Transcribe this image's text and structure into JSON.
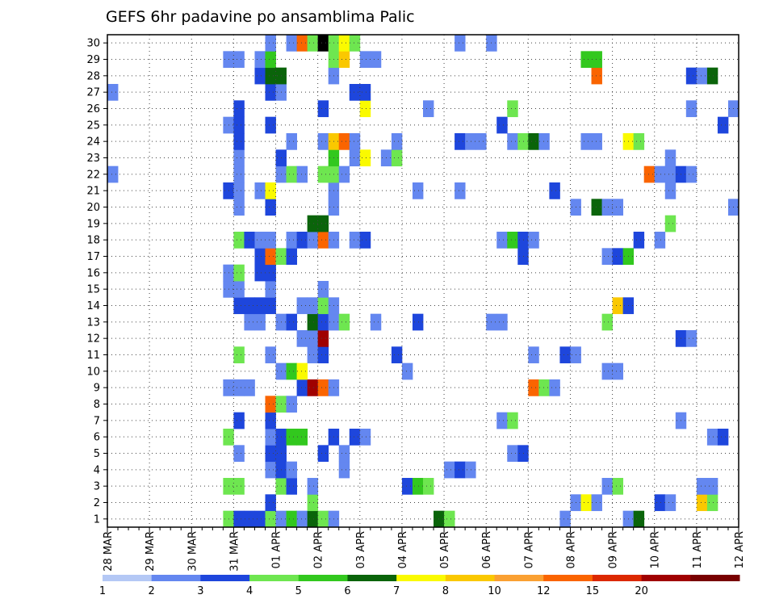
{
  "chart_data": {
    "type": "heatmap",
    "title": "GEFS 6hr padavine po ansamblima Palic",
    "xlabel": "",
    "ylabel": "",
    "x_unit": "6-hour step",
    "x_start": "28 MAR 00Z",
    "x_ticks": [
      "28 MAR",
      "29 MAR",
      "30 MAR",
      "31 MAR",
      "01 APR",
      "02 APR",
      "03 APR",
      "04 APR",
      "05 APR",
      "06 APR",
      "07 APR",
      "08 APR",
      "09 APR",
      "10 APR",
      "11 APR",
      "12 APR"
    ],
    "y_ticks": [
      "1",
      "2",
      "3",
      "4",
      "5",
      "6",
      "7",
      "8",
      "9",
      "10",
      "11",
      "12",
      "13",
      "14",
      "15",
      "16",
      "17",
      "18",
      "19",
      "20",
      "21",
      "22",
      "23",
      "24",
      "25",
      "26",
      "27",
      "28",
      "29",
      "30"
    ],
    "xlim": [
      0,
      60
    ],
    "ylim": [
      0.5,
      30.5
    ],
    "grid": true,
    "legend": "bottom colorbar",
    "colorbar": {
      "labels": [
        "1",
        "2",
        "3",
        "4",
        "5",
        "6",
        "7",
        "8",
        "10",
        "12",
        "15",
        "20"
      ],
      "colors": [
        "#b4c8f5",
        "#6487f0",
        "#1e46dc",
        "#6ee650",
        "#32c81e",
        "#0a640a",
        "#fafa00",
        "#fac800",
        "#faa032",
        "#fa6400",
        "#dc2800",
        "#a00000",
        "#780000"
      ]
    },
    "cells": [
      [
        12,
        1,
        3
      ],
      [
        13,
        1,
        2
      ],
      [
        14,
        1,
        2
      ],
      [
        15,
        1,
        2
      ],
      [
        16,
        1,
        3
      ],
      [
        17,
        1,
        1
      ],
      [
        18,
        1,
        4
      ],
      [
        19,
        1,
        1
      ],
      [
        20,
        1,
        5
      ],
      [
        21,
        1,
        3
      ],
      [
        22,
        1,
        1
      ],
      [
        32,
        1,
        5
      ],
      [
        33,
        1,
        3
      ],
      [
        44,
        1,
        1
      ],
      [
        50,
        1,
        1
      ],
      [
        51,
        1,
        5
      ],
      [
        16,
        2,
        2
      ],
      [
        20,
        2,
        3
      ],
      [
        45,
        2,
        1
      ],
      [
        46,
        2,
        6
      ],
      [
        47,
        2,
        1
      ],
      [
        53,
        2,
        2
      ],
      [
        54,
        2,
        1
      ],
      [
        57,
        2,
        7
      ],
      [
        58,
        2,
        3
      ],
      [
        12,
        3,
        3
      ],
      [
        13,
        3,
        3
      ],
      [
        17,
        3,
        3
      ],
      [
        18,
        3,
        2
      ],
      [
        20,
        3,
        1
      ],
      [
        29,
        3,
        2
      ],
      [
        30,
        3,
        4
      ],
      [
        31,
        3,
        3
      ],
      [
        48,
        3,
        1
      ],
      [
        49,
        3,
        3
      ],
      [
        57,
        3,
        1
      ],
      [
        58,
        3,
        1
      ],
      [
        16,
        4,
        1
      ],
      [
        17,
        4,
        2
      ],
      [
        18,
        4,
        1
      ],
      [
        23,
        4,
        1
      ],
      [
        33,
        4,
        1
      ],
      [
        34,
        4,
        2
      ],
      [
        35,
        4,
        1
      ],
      [
        13,
        5,
        1
      ],
      [
        16,
        5,
        2
      ],
      [
        17,
        5,
        2
      ],
      [
        21,
        5,
        2
      ],
      [
        23,
        5,
        1
      ],
      [
        39,
        5,
        1
      ],
      [
        40,
        5,
        2
      ],
      [
        12,
        6,
        3
      ],
      [
        16,
        6,
        1
      ],
      [
        17,
        6,
        2
      ],
      [
        18,
        6,
        4
      ],
      [
        19,
        6,
        4
      ],
      [
        22,
        6,
        2
      ],
      [
        24,
        6,
        2
      ],
      [
        25,
        6,
        1
      ],
      [
        58,
        6,
        1
      ],
      [
        59,
        6,
        2
      ],
      [
        13,
        7,
        2
      ],
      [
        16,
        7,
        2
      ],
      [
        38,
        7,
        1
      ],
      [
        39,
        7,
        3
      ],
      [
        55,
        7,
        1
      ],
      [
        16,
        8,
        9
      ],
      [
        17,
        8,
        3
      ],
      [
        18,
        8,
        1
      ],
      [
        12,
        9,
        1
      ],
      [
        13,
        9,
        1
      ],
      [
        14,
        9,
        1
      ],
      [
        19,
        9,
        2
      ],
      [
        20,
        9,
        11
      ],
      [
        21,
        9,
        9
      ],
      [
        22,
        9,
        1
      ],
      [
        41,
        9,
        9
      ],
      [
        42,
        9,
        3
      ],
      [
        43,
        9,
        1
      ],
      [
        17,
        10,
        1
      ],
      [
        18,
        10,
        4
      ],
      [
        19,
        10,
        6
      ],
      [
        29,
        10,
        1
      ],
      [
        48,
        10,
        1
      ],
      [
        49,
        10,
        1
      ],
      [
        13,
        11,
        3
      ],
      [
        16,
        11,
        1
      ],
      [
        20,
        11,
        1
      ],
      [
        21,
        11,
        2
      ],
      [
        28,
        11,
        2
      ],
      [
        41,
        11,
        1
      ],
      [
        44,
        11,
        2
      ],
      [
        45,
        11,
        1
      ],
      [
        19,
        12,
        1
      ],
      [
        20,
        12,
        1
      ],
      [
        21,
        12,
        11
      ],
      [
        55,
        12,
        2
      ],
      [
        56,
        12,
        1
      ],
      [
        14,
        13,
        1
      ],
      [
        15,
        13,
        1
      ],
      [
        17,
        13,
        1
      ],
      [
        18,
        13,
        2
      ],
      [
        20,
        13,
        5
      ],
      [
        21,
        13,
        2
      ],
      [
        22,
        13,
        1
      ],
      [
        23,
        13,
        3
      ],
      [
        26,
        13,
        1
      ],
      [
        30,
        13,
        2
      ],
      [
        37,
        13,
        1
      ],
      [
        38,
        13,
        1
      ],
      [
        48,
        13,
        3
      ],
      [
        13,
        14,
        2
      ],
      [
        14,
        14,
        2
      ],
      [
        15,
        14,
        2
      ],
      [
        16,
        14,
        2
      ],
      [
        19,
        14,
        1
      ],
      [
        20,
        14,
        1
      ],
      [
        21,
        14,
        3
      ],
      [
        22,
        14,
        1
      ],
      [
        49,
        14,
        7
      ],
      [
        50,
        14,
        2
      ],
      [
        12,
        15,
        1
      ],
      [
        13,
        15,
        1
      ],
      [
        16,
        15,
        1
      ],
      [
        21,
        15,
        1
      ],
      [
        12,
        16,
        1
      ],
      [
        13,
        16,
        3
      ],
      [
        15,
        16,
        2
      ],
      [
        16,
        16,
        2
      ],
      [
        15,
        17,
        2
      ],
      [
        16,
        17,
        9
      ],
      [
        17,
        17,
        3
      ],
      [
        18,
        17,
        2
      ],
      [
        40,
        17,
        2
      ],
      [
        48,
        17,
        1
      ],
      [
        49,
        17,
        2
      ],
      [
        50,
        17,
        4
      ],
      [
        13,
        18,
        3
      ],
      [
        14,
        18,
        2
      ],
      [
        15,
        18,
        1
      ],
      [
        16,
        18,
        1
      ],
      [
        18,
        18,
        1
      ],
      [
        19,
        18,
        2
      ],
      [
        20,
        18,
        1
      ],
      [
        21,
        18,
        9
      ],
      [
        22,
        18,
        1
      ],
      [
        24,
        18,
        1
      ],
      [
        25,
        18,
        2
      ],
      [
        38,
        18,
        1
      ],
      [
        39,
        18,
        4
      ],
      [
        40,
        18,
        2
      ],
      [
        41,
        18,
        1
      ],
      [
        51,
        18,
        2
      ],
      [
        53,
        18,
        1
      ],
      [
        20,
        19,
        5
      ],
      [
        21,
        19,
        5
      ],
      [
        54,
        19,
        3
      ],
      [
        13,
        20,
        1
      ],
      [
        16,
        20,
        2
      ],
      [
        22,
        20,
        1
      ],
      [
        45,
        20,
        1
      ],
      [
        47,
        20,
        5
      ],
      [
        48,
        20,
        1
      ],
      [
        49,
        20,
        1
      ],
      [
        60,
        20,
        1
      ],
      [
        12,
        21,
        2
      ],
      [
        13,
        21,
        1
      ],
      [
        15,
        21,
        1
      ],
      [
        16,
        21,
        6
      ],
      [
        22,
        21,
        1
      ],
      [
        30,
        21,
        1
      ],
      [
        34,
        21,
        1
      ],
      [
        43,
        21,
        2
      ],
      [
        54,
        21,
        1
      ],
      [
        1,
        22,
        1
      ],
      [
        13,
        22,
        1
      ],
      [
        17,
        22,
        1
      ],
      [
        18,
        22,
        3
      ],
      [
        19,
        22,
        1
      ],
      [
        21,
        22,
        3
      ],
      [
        22,
        22,
        3
      ],
      [
        23,
        22,
        1
      ],
      [
        52,
        22,
        9
      ],
      [
        53,
        22,
        1
      ],
      [
        54,
        22,
        1
      ],
      [
        55,
        22,
        2
      ],
      [
        56,
        22,
        1
      ],
      [
        13,
        23,
        1
      ],
      [
        17,
        23,
        2
      ],
      [
        22,
        23,
        4
      ],
      [
        24,
        23,
        1
      ],
      [
        25,
        23,
        6
      ],
      [
        27,
        23,
        1
      ],
      [
        28,
        23,
        3
      ],
      [
        54,
        23,
        1
      ],
      [
        13,
        24,
        2
      ],
      [
        18,
        24,
        1
      ],
      [
        21,
        24,
        1
      ],
      [
        22,
        24,
        7
      ],
      [
        23,
        24,
        9
      ],
      [
        24,
        24,
        1
      ],
      [
        28,
        24,
        1
      ],
      [
        34,
        24,
        2
      ],
      [
        35,
        24,
        1
      ],
      [
        36,
        24,
        1
      ],
      [
        39,
        24,
        1
      ],
      [
        40,
        24,
        3
      ],
      [
        41,
        24,
        5
      ],
      [
        42,
        24,
        1
      ],
      [
        46,
        24,
        1
      ],
      [
        47,
        24,
        1
      ],
      [
        50,
        24,
        6
      ],
      [
        51,
        24,
        3
      ],
      [
        12,
        25,
        1
      ],
      [
        13,
        25,
        2
      ],
      [
        16,
        25,
        2
      ],
      [
        38,
        25,
        2
      ],
      [
        59,
        25,
        2
      ],
      [
        13,
        26,
        2
      ],
      [
        21,
        26,
        2
      ],
      [
        25,
        26,
        6
      ],
      [
        31,
        26,
        1
      ],
      [
        39,
        26,
        3
      ],
      [
        56,
        26,
        1
      ],
      [
        60,
        26,
        1
      ],
      [
        1,
        27,
        1
      ],
      [
        16,
        27,
        2
      ],
      [
        17,
        27,
        1
      ],
      [
        24,
        27,
        2
      ],
      [
        25,
        27,
        2
      ],
      [
        15,
        28,
        2
      ],
      [
        16,
        28,
        5
      ],
      [
        17,
        28,
        5
      ],
      [
        22,
        28,
        1
      ],
      [
        47,
        28,
        9
      ],
      [
        56,
        28,
        2
      ],
      [
        57,
        28,
        1
      ],
      [
        58,
        28,
        5
      ],
      [
        12,
        29,
        1
      ],
      [
        13,
        29,
        1
      ],
      [
        15,
        29,
        1
      ],
      [
        16,
        29,
        4
      ],
      [
        22,
        29,
        3
      ],
      [
        23,
        29,
        7
      ],
      [
        25,
        29,
        1
      ],
      [
        26,
        29,
        1
      ],
      [
        46,
        29,
        4
      ],
      [
        47,
        29,
        4
      ],
      [
        16,
        30,
        1
      ],
      [
        18,
        30,
        1
      ],
      [
        19,
        30,
        9
      ],
      [
        20,
        30,
        3
      ],
      [
        21,
        30,
        13
      ],
      [
        22,
        30,
        3
      ],
      [
        23,
        30,
        6
      ],
      [
        24,
        30,
        3
      ],
      [
        34,
        30,
        1
      ],
      [
        37,
        30,
        1
      ]
    ]
  }
}
